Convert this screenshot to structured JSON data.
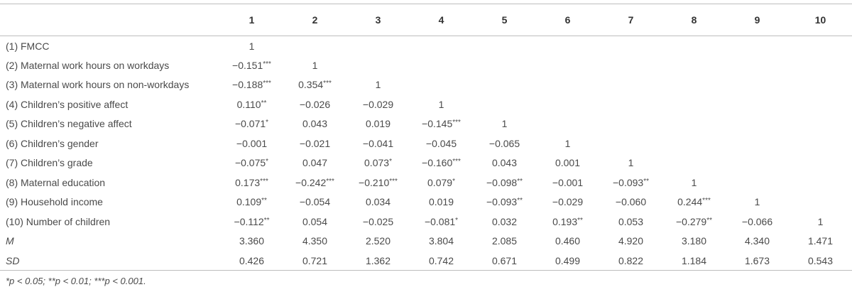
{
  "table": {
    "header": [
      "1",
      "2",
      "3",
      "4",
      "5",
      "6",
      "7",
      "8",
      "9",
      "10"
    ],
    "rows": [
      {
        "label": "(1) FMCC",
        "cells": [
          "1"
        ]
      },
      {
        "label": "(2) Maternal work hours on workdays",
        "cells": [
          "−0.151***",
          "1"
        ]
      },
      {
        "label": "(3) Maternal work hours on non-workdays",
        "cells": [
          "−0.188***",
          "0.354***",
          "1"
        ]
      },
      {
        "label": "(4) Children’s positive affect",
        "cells": [
          "0.110**",
          "−0.026",
          "−0.029",
          "1"
        ]
      },
      {
        "label": "(5) Children’s negative affect",
        "cells": [
          "−0.071*",
          "0.043",
          "0.019",
          "−0.145***",
          "1"
        ]
      },
      {
        "label": "(6) Children’s gender",
        "cells": [
          "−0.001",
          "−0.021",
          "−0.041",
          "−0.045",
          "−0.065",
          "1"
        ]
      },
      {
        "label": "(7) Children’s grade",
        "cells": [
          "−0.075*",
          "0.047",
          "0.073*",
          "−0.160***",
          "0.043",
          "0.001",
          "1"
        ]
      },
      {
        "label": "(8) Maternal education",
        "cells": [
          "0.173***",
          "−0.242***",
          "−0.210***",
          "0.079*",
          "−0.098**",
          "−0.001",
          "−0.093**",
          "1"
        ]
      },
      {
        "label": "(9) Household income",
        "cells": [
          "0.109**",
          "−0.054",
          "0.034",
          "0.019",
          "−0.093**",
          "−0.029",
          "−0.060",
          "0.244***",
          "1"
        ]
      },
      {
        "label": "(10) Number of children",
        "cells": [
          "−0.112**",
          "0.054",
          "−0.025",
          "−0.081*",
          "0.032",
          "0.193**",
          "0.053",
          "−0.279**",
          "−0.066",
          "1"
        ]
      },
      {
        "label": "M",
        "italic": true,
        "cells": [
          "3.360",
          "4.350",
          "2.520",
          "3.804",
          "2.085",
          "0.460",
          "4.920",
          "3.180",
          "4.340",
          "1.471"
        ]
      },
      {
        "label": "SD",
        "italic": true,
        "cells": [
          "0.426",
          "0.721",
          "1.362",
          "0.742",
          "0.671",
          "0.499",
          "0.822",
          "1.184",
          "1.673",
          "0.543"
        ]
      }
    ]
  },
  "footnote": "*p < 0.05; **p < 0.01; ***p < 0.001."
}
